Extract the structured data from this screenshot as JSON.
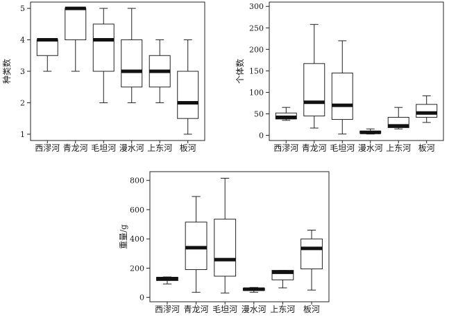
{
  "chart_data": [
    {
      "type": "boxplot",
      "ylabel": "种类数",
      "ylim": [
        0.8,
        5.2
      ],
      "yticks": [
        1,
        2,
        3,
        4,
        5
      ],
      "categories": [
        "西漻河",
        "青龙河",
        "毛坦河",
        "漫水河",
        "上东河",
        "板河"
      ],
      "boxes": [
        {
          "min": 3,
          "q1": 3.5,
          "median": 4,
          "q3": 4,
          "max": 4
        },
        {
          "min": 3,
          "q1": 4,
          "median": 5,
          "q3": 5,
          "max": 5
        },
        {
          "min": 2,
          "q1": 3,
          "median": 4,
          "q3": 4.5,
          "max": 5
        },
        {
          "min": 2,
          "q1": 2.5,
          "median": 3,
          "q3": 4,
          "max": 5
        },
        {
          "min": 2,
          "q1": 2.5,
          "median": 3,
          "q3": 3.5,
          "max": 4
        },
        {
          "min": 1,
          "q1": 1.5,
          "median": 2,
          "q3": 3,
          "max": 4
        }
      ]
    },
    {
      "type": "boxplot",
      "ylabel": "个体数",
      "ylim": [
        -12,
        310
      ],
      "yticks": [
        0,
        50,
        100,
        150,
        200,
        250,
        300
      ],
      "categories": [
        "西漻河",
        "青龙河",
        "毛坦河",
        "漫水河",
        "上东河",
        "板河"
      ],
      "boxes": [
        {
          "min": 35,
          "q1": 38,
          "median": 42,
          "q3": 52,
          "max": 65
        },
        {
          "min": 17,
          "q1": 45,
          "median": 77,
          "q3": 167,
          "max": 258
        },
        {
          "min": 3,
          "q1": 37,
          "median": 70,
          "q3": 145,
          "max": 220
        },
        {
          "min": 3,
          "q1": 5,
          "median": 7,
          "q3": 10,
          "max": 15
        },
        {
          "min": 15,
          "q1": 18,
          "median": 22,
          "q3": 42,
          "max": 65
        },
        {
          "min": 30,
          "q1": 42,
          "median": 52,
          "q3": 72,
          "max": 92
        }
      ]
    },
    {
      "type": "boxplot",
      "ylabel": "重量/g",
      "ylim": [
        -30,
        860
      ],
      "yticks": [
        0,
        200,
        400,
        600,
        800
      ],
      "categories": [
        "西漻河",
        "青龙河",
        "毛坦河",
        "漫水河",
        "上东河",
        "板河"
      ],
      "boxes": [
        {
          "min": 92,
          "q1": 115,
          "median": 128,
          "q3": 138,
          "max": 140
        },
        {
          "min": 35,
          "q1": 190,
          "median": 340,
          "q3": 515,
          "max": 690
        },
        {
          "min": 30,
          "q1": 145,
          "median": 258,
          "q3": 535,
          "max": 815
        },
        {
          "min": 35,
          "q1": 48,
          "median": 56,
          "q3": 62,
          "max": 68
        },
        {
          "min": 65,
          "q1": 120,
          "median": 172,
          "q3": 185,
          "max": 185
        },
        {
          "min": 50,
          "q1": 195,
          "median": 335,
          "q3": 400,
          "max": 460
        }
      ]
    }
  ]
}
